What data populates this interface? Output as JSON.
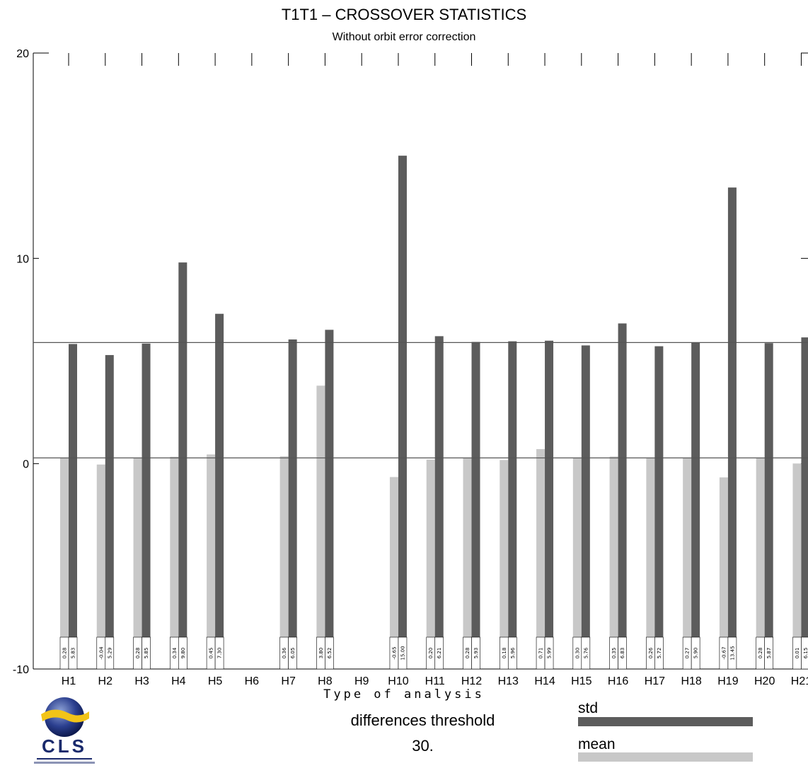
{
  "chart_data": {
    "type": "bar",
    "title": "T1T1 – CROSSOVER STATISTICS",
    "subtitle": "Without orbit error correction",
    "xlabel": "Type of analysis",
    "ylim": [
      -10,
      20
    ],
    "yticks": [
      "20",
      "10",
      "0",
      "-10"
    ],
    "categories": [
      "H1",
      "H2",
      "H3",
      "H4",
      "H5",
      "H6",
      "H7",
      "H8",
      "H9",
      "H10",
      "H11",
      "H12",
      "H13",
      "H14",
      "H15",
      "H16",
      "H17",
      "H18",
      "H19",
      "H20",
      "H21"
    ],
    "series": [
      {
        "name": "mean",
        "values": [
          0.28,
          -0.04,
          0.28,
          0.34,
          0.45,
          null,
          0.36,
          3.8,
          null,
          -0.65,
          0.2,
          0.28,
          0.18,
          0.71,
          0.3,
          0.35,
          0.26,
          0.27,
          -0.67,
          0.28,
          0.01
        ]
      },
      {
        "name": "std",
        "values": [
          5.83,
          5.29,
          5.85,
          9.8,
          7.3,
          null,
          6.05,
          6.52,
          null,
          15.0,
          6.21,
          5.93,
          5.96,
          5.99,
          5.76,
          6.83,
          5.72,
          5.9,
          13.45,
          5.87,
          6.15
        ]
      }
    ],
    "value_labels": {
      "mean": [
        "0.28",
        "-0.04",
        "0.28",
        "0.34",
        "0.45",
        "",
        "0.36",
        "3.80",
        "",
        "-0.65",
        "0.20",
        "0.28",
        "0.18",
        "0.71",
        "0.30",
        "0.35",
        "0.26",
        "0.27",
        "-0.67",
        "0.28",
        "0.01"
      ],
      "std": [
        "5.83",
        "5.29",
        "5.85",
        "9.80",
        "7.30",
        "",
        "6.05",
        "6.52",
        "",
        "15.00",
        "6.21",
        "5.93",
        "5.96",
        "5.99",
        "5.76",
        "6.83",
        "5.72",
        "5.90",
        "13.45",
        "5.87",
        "6.15"
      ]
    },
    "reference_lines": [
      0.28,
      5.9
    ],
    "grid": false,
    "colors": {
      "std": "#5c5c5c",
      "mean": "#c8c8c8",
      "axis": "#000000",
      "refline": "#555555"
    }
  },
  "threshold": {
    "label": "differences threshold",
    "value": "30."
  },
  "legend": {
    "std_label": "std",
    "mean_label": "mean"
  },
  "logo": {
    "text": "CLS"
  }
}
